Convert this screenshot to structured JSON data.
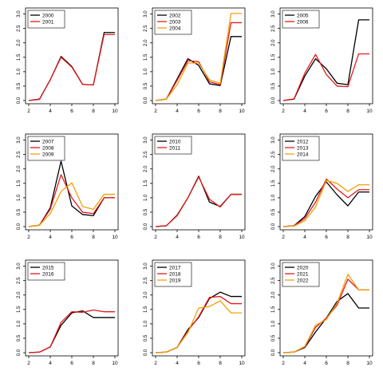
{
  "chart_data": [
    {
      "type": "line",
      "x": [
        2,
        3,
        4,
        5,
        6,
        7,
        8,
        9,
        10
      ],
      "xticks": [
        2,
        4,
        6,
        8,
        10
      ],
      "yticks": [
        "0.0",
        "0.5",
        "1.0",
        "1.5",
        "2.0",
        "2.5",
        "3.0"
      ],
      "xlim": [
        2,
        10
      ],
      "ylim": [
        0,
        3.1
      ],
      "legend": "top-left",
      "series": [
        {
          "name": "2000",
          "color": "#000000",
          "values": [
            0.0,
            0.05,
            0.72,
            1.53,
            1.18,
            0.56,
            0.54,
            2.36,
            2.36
          ]
        },
        {
          "name": "2001",
          "color": "#e41a1c",
          "values": [
            0.0,
            0.04,
            0.72,
            1.5,
            1.16,
            0.56,
            0.54,
            2.29,
            2.29
          ]
        }
      ]
    },
    {
      "type": "line",
      "x": [
        2,
        3,
        4,
        5,
        6,
        7,
        8,
        9,
        10
      ],
      "xticks": [
        2,
        4,
        6,
        8,
        10
      ],
      "yticks": [
        "0.0",
        "0.5",
        "1.0",
        "1.5",
        "2.0",
        "2.5",
        "3.0"
      ],
      "xlim": [
        2,
        10
      ],
      "ylim": [
        0,
        3.1
      ],
      "legend": "top-left",
      "series": [
        {
          "name": "2002",
          "color": "#000000",
          "values": [
            0.0,
            0.05,
            0.75,
            1.45,
            1.22,
            0.58,
            0.52,
            2.22,
            2.22
          ]
        },
        {
          "name": "2003",
          "color": "#e41a1c",
          "values": [
            0.0,
            0.05,
            0.7,
            1.38,
            1.35,
            0.65,
            0.55,
            2.7,
            2.7
          ]
        },
        {
          "name": "2004",
          "color": "#f0a00a",
          "values": [
            0.0,
            0.05,
            0.55,
            1.3,
            1.3,
            0.72,
            0.6,
            3.02,
            3.02
          ]
        }
      ]
    },
    {
      "type": "line",
      "x": [
        2,
        3,
        4,
        5,
        6,
        7,
        8,
        9,
        10
      ],
      "xticks": [
        2,
        4,
        6,
        8,
        10
      ],
      "yticks": [
        "0.0",
        "0.5",
        "1.0",
        "1.5",
        "2.0",
        "2.5",
        "3.0"
      ],
      "xlim": [
        2,
        10
      ],
      "ylim": [
        0,
        3.1
      ],
      "legend": "top-left",
      "series": [
        {
          "name": "2005",
          "color": "#000000",
          "values": [
            0.0,
            0.05,
            0.85,
            1.45,
            1.1,
            0.6,
            0.55,
            2.8,
            2.8
          ]
        },
        {
          "name": "2006",
          "color": "#e41a1c",
          "values": [
            0.0,
            0.06,
            0.95,
            1.6,
            0.9,
            0.5,
            0.48,
            1.62,
            1.62
          ]
        }
      ]
    },
    {
      "type": "line",
      "x": [
        2,
        3,
        4,
        5,
        6,
        7,
        8,
        9,
        10
      ],
      "xticks": [
        2,
        4,
        6,
        8,
        10
      ],
      "yticks": [
        "0.0",
        "0.5",
        "1.0",
        "1.5",
        "2.0",
        "2.5",
        "3.0"
      ],
      "xlim": [
        2,
        10
      ],
      "ylim": [
        0,
        3.1
      ],
      "legend": "top-left",
      "series": [
        {
          "name": "2007",
          "color": "#000000",
          "values": [
            0.0,
            0.05,
            0.65,
            2.27,
            0.72,
            0.42,
            0.38,
            1.0,
            1.0
          ]
        },
        {
          "name": "2008",
          "color": "#e41a1c",
          "values": [
            0.0,
            0.05,
            0.6,
            1.8,
            1.0,
            0.5,
            0.45,
            1.0,
            1.0
          ]
        },
        {
          "name": "2009",
          "color": "#f0a00a",
          "values": [
            0.0,
            0.05,
            0.45,
            1.22,
            1.52,
            0.7,
            0.6,
            1.12,
            1.12
          ]
        }
      ]
    },
    {
      "type": "line",
      "x": [
        2,
        3,
        4,
        5,
        6,
        7,
        8,
        9,
        10
      ],
      "xticks": [
        2,
        4,
        6,
        8,
        10
      ],
      "yticks": [
        "0.0",
        "0.5",
        "1.0",
        "1.5",
        "2.0",
        "2.5",
        "3.0"
      ],
      "xlim": [
        2,
        10
      ],
      "ylim": [
        0,
        3.1
      ],
      "legend": "top-left",
      "series": [
        {
          "name": "2010",
          "color": "#000000",
          "values": [
            0.0,
            0.03,
            0.4,
            1.0,
            1.75,
            0.85,
            0.7,
            1.12,
            1.12
          ]
        },
        {
          "name": "2011",
          "color": "#e41a1c",
          "values": [
            0.0,
            0.03,
            0.38,
            1.0,
            1.72,
            0.95,
            0.68,
            1.12,
            1.12
          ]
        }
      ]
    },
    {
      "type": "line",
      "x": [
        2,
        3,
        4,
        5,
        6,
        7,
        8,
        9,
        10
      ],
      "xticks": [
        2,
        4,
        6,
        8,
        10
      ],
      "yticks": [
        "0.0",
        "0.5",
        "1.0",
        "1.5",
        "2.0",
        "2.5",
        "3.0"
      ],
      "xlim": [
        2,
        10
      ],
      "ylim": [
        0,
        3.1
      ],
      "legend": "top-left",
      "series": [
        {
          "name": "2012",
          "color": "#000000",
          "values": [
            0.0,
            0.03,
            0.35,
            1.05,
            1.55,
            1.1,
            0.72,
            1.2,
            1.2
          ]
        },
        {
          "name": "2013",
          "color": "#e41a1c",
          "values": [
            0.0,
            0.03,
            0.28,
            0.85,
            1.65,
            1.3,
            1.0,
            1.28,
            1.28
          ]
        },
        {
          "name": "2014",
          "color": "#f0a00a",
          "values": [
            0.0,
            0.02,
            0.2,
            0.68,
            1.6,
            1.5,
            1.22,
            1.45,
            1.45
          ]
        }
      ]
    },
    {
      "type": "line",
      "x": [
        2,
        3,
        4,
        5,
        6,
        7,
        8,
        9,
        10
      ],
      "xticks": [
        2,
        4,
        6,
        8,
        10
      ],
      "yticks": [
        "0.0",
        "0.5",
        "1.0",
        "1.5",
        "2.0",
        "2.5",
        "3.0"
      ],
      "xlim": [
        2,
        10
      ],
      "ylim": [
        0,
        3.1
      ],
      "legend": "top-left",
      "series": [
        {
          "name": "2015",
          "color": "#000000",
          "values": [
            0.0,
            0.02,
            0.2,
            0.95,
            1.38,
            1.45,
            1.22,
            1.22,
            1.22
          ]
        },
        {
          "name": "2016",
          "color": "#e41a1c",
          "values": [
            0.0,
            0.02,
            0.2,
            1.05,
            1.42,
            1.4,
            1.48,
            1.42,
            1.42
          ]
        }
      ]
    },
    {
      "type": "line",
      "x": [
        2,
        3,
        4,
        5,
        6,
        7,
        8,
        9,
        10
      ],
      "xticks": [
        2,
        4,
        6,
        8,
        10
      ],
      "yticks": [
        "0.0",
        "0.5",
        "1.0",
        "1.5",
        "2.0",
        "2.5",
        "3.0"
      ],
      "xlim": [
        2,
        10
      ],
      "ylim": [
        0,
        3.1
      ],
      "legend": "top-left",
      "series": [
        {
          "name": "2017",
          "color": "#000000",
          "values": [
            0.0,
            0.02,
            0.18,
            0.8,
            1.22,
            1.88,
            2.1,
            1.95,
            1.95
          ]
        },
        {
          "name": "2018",
          "color": "#e41a1c",
          "values": [
            0.0,
            0.02,
            0.18,
            0.75,
            1.25,
            1.92,
            1.95,
            1.7,
            1.7
          ]
        },
        {
          "name": "2019",
          "color": "#f0a00a",
          "values": [
            0.0,
            0.02,
            0.18,
            0.7,
            1.55,
            1.6,
            1.8,
            1.38,
            1.38
          ]
        }
      ]
    },
    {
      "type": "line",
      "x": [
        2,
        3,
        4,
        5,
        6,
        7,
        8,
        9,
        10
      ],
      "xticks": [
        2,
        4,
        6,
        8,
        10
      ],
      "yticks": [
        "0.0",
        "0.5",
        "1.0",
        "1.5",
        "2.0",
        "2.5",
        "3.0"
      ],
      "xlim": [
        2,
        10
      ],
      "ylim": [
        0,
        3.1
      ],
      "legend": "top-left",
      "series": [
        {
          "name": "2020",
          "color": "#000000",
          "values": [
            0.0,
            0.02,
            0.18,
            0.72,
            1.2,
            1.78,
            2.05,
            1.55,
            1.55
          ]
        },
        {
          "name": "2021",
          "color": "#e41a1c",
          "values": [
            0.0,
            0.02,
            0.2,
            0.88,
            1.2,
            1.65,
            2.55,
            2.18,
            2.18
          ]
        },
        {
          "name": "2022",
          "color": "#f0a00a",
          "values": [
            0.0,
            0.02,
            0.22,
            0.95,
            1.15,
            1.72,
            2.72,
            2.18,
            2.18
          ]
        }
      ]
    }
  ]
}
